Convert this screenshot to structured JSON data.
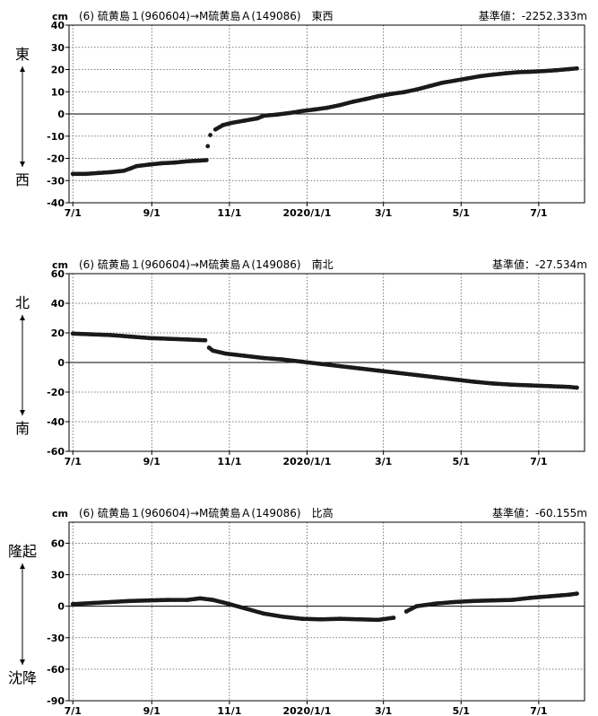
{
  "chart_data": [
    {
      "type": "scatter",
      "title": "(6) 硫黄島１(960604)→M硫黄島Ａ(149086)　東西",
      "unit": "cm",
      "base_value": "基準値：-2252.333m",
      "direction_top": "東",
      "direction_bottom": "西",
      "x_ticks": [
        "7/1",
        "9/1",
        "11/1",
        "2020/1/1",
        "3/1",
        "5/1",
        "7/1"
      ],
      "x_tick_days": [
        0,
        62,
        123,
        184,
        244,
        305,
        366
      ],
      "xlim_days": [
        -3,
        402
      ],
      "ylim": [
        -40,
        40
      ],
      "y_ticks": [
        -40,
        -30,
        -20,
        -10,
        0,
        10,
        20,
        30,
        40
      ],
      "series": [
        {
          "values": [
            [
              0,
              -27
            ],
            [
              10,
              -27
            ],
            [
              20,
              -26.6
            ],
            [
              30,
              -26.2
            ],
            [
              40,
              -25.6
            ],
            [
              45,
              -24.6
            ],
            [
              50,
              -23.5
            ],
            [
              60,
              -22.8
            ],
            [
              70,
              -22.2
            ],
            [
              80,
              -21.9
            ],
            [
              90,
              -21.3
            ],
            [
              100,
              -21
            ],
            [
              105,
              -20.8
            ],
            [
              106,
              -14.5
            ],
            [
              108,
              -9.5
            ],
            [
              112,
              -7
            ],
            [
              118,
              -5
            ],
            [
              125,
              -4
            ],
            [
              135,
              -3
            ],
            [
              145,
              -2
            ],
            [
              150,
              -0.8
            ],
            [
              160,
              -0.3
            ],
            [
              170,
              0.4
            ],
            [
              180,
              1.3
            ],
            [
              190,
              2
            ],
            [
              200,
              2.8
            ],
            [
              210,
              4
            ],
            [
              220,
              5.5
            ],
            [
              230,
              6.7
            ],
            [
              240,
              8
            ],
            [
              250,
              9
            ],
            [
              260,
              9.8
            ],
            [
              270,
              11
            ],
            [
              280,
              12.5
            ],
            [
              290,
              14
            ],
            [
              300,
              15
            ],
            [
              310,
              16
            ],
            [
              320,
              17
            ],
            [
              330,
              17.7
            ],
            [
              340,
              18.3
            ],
            [
              350,
              18.8
            ],
            [
              360,
              19
            ],
            [
              370,
              19.3
            ],
            [
              380,
              19.7
            ],
            [
              390,
              20.2
            ],
            [
              396,
              20.5
            ]
          ]
        }
      ]
    },
    {
      "type": "scatter",
      "title": "(6) 硫黄島１(960604)→M硫黄島Ａ(149086)　南北",
      "unit": "cm",
      "base_value": "基準値：-27.534m",
      "direction_top": "北",
      "direction_bottom": "南",
      "x_ticks": [
        "7/1",
        "9/1",
        "11/1",
        "2020/1/1",
        "3/1",
        "5/1",
        "7/1"
      ],
      "x_tick_days": [
        0,
        62,
        123,
        184,
        244,
        305,
        366
      ],
      "xlim_days": [
        -3,
        402
      ],
      "ylim": [
        -60,
        60
      ],
      "y_ticks": [
        -60,
        -40,
        -20,
        0,
        20,
        40,
        60
      ],
      "series": [
        {
          "values": [
            [
              0,
              19.5
            ],
            [
              15,
              19
            ],
            [
              30,
              18.5
            ],
            [
              45,
              17.5
            ],
            [
              60,
              16.5
            ],
            [
              75,
              16
            ],
            [
              90,
              15.5
            ],
            [
              104,
              15
            ],
            [
              107,
              10
            ],
            [
              110,
              8
            ],
            [
              120,
              6
            ],
            [
              135,
              4.5
            ],
            [
              150,
              3
            ],
            [
              165,
              2
            ],
            [
              180,
              0.5
            ],
            [
              195,
              -1
            ],
            [
              210,
              -2.5
            ],
            [
              225,
              -4
            ],
            [
              240,
              -5.5
            ],
            [
              255,
              -7
            ],
            [
              270,
              -8.5
            ],
            [
              285,
              -10
            ],
            [
              300,
              -11.5
            ],
            [
              315,
              -13
            ],
            [
              330,
              -14.2
            ],
            [
              345,
              -15
            ],
            [
              360,
              -15.5
            ],
            [
              375,
              -16
            ],
            [
              390,
              -16.5
            ],
            [
              396,
              -17
            ]
          ]
        }
      ]
    },
    {
      "type": "scatter",
      "title": "(6) 硫黄島１(960604)→M硫黄島Ａ(149086)　比高",
      "unit": "cm",
      "base_value": "基準値：-60.155m",
      "direction_top": "隆起",
      "direction_bottom": "沈降",
      "x_ticks": [
        "7/1",
        "9/1",
        "11/1",
        "2020/1/1",
        "3/1",
        "5/1",
        "7/1"
      ],
      "x_tick_days": [
        0,
        62,
        123,
        184,
        244,
        305,
        366
      ],
      "xlim_days": [
        -3,
        402
      ],
      "ylim": [
        -90,
        80
      ],
      "y_ticks": [
        -90,
        -60,
        -30,
        0,
        30,
        60
      ],
      "series": [
        {
          "values": [
            [
              0,
              2
            ],
            [
              15,
              3
            ],
            [
              30,
              4
            ],
            [
              45,
              5
            ],
            [
              60,
              5.5
            ],
            [
              75,
              6
            ],
            [
              90,
              6
            ],
            [
              100,
              7.5
            ],
            [
              110,
              6
            ],
            [
              120,
              3
            ],
            [
              135,
              -2
            ],
            [
              150,
              -7
            ],
            [
              165,
              -10
            ],
            [
              180,
              -12
            ],
            [
              195,
              -12.5
            ],
            [
              210,
              -12
            ],
            [
              225,
              -12.5
            ],
            [
              240,
              -13
            ],
            [
              252,
              -11
            ],
            [
              262,
              -5
            ],
            [
              270,
              0
            ],
            [
              285,
              2.5
            ],
            [
              300,
              4
            ],
            [
              315,
              5
            ],
            [
              330,
              5.5
            ],
            [
              345,
              6
            ],
            [
              360,
              8
            ],
            [
              375,
              9.5
            ],
            [
              390,
              11
            ],
            [
              396,
              12
            ]
          ]
        }
      ]
    }
  ]
}
